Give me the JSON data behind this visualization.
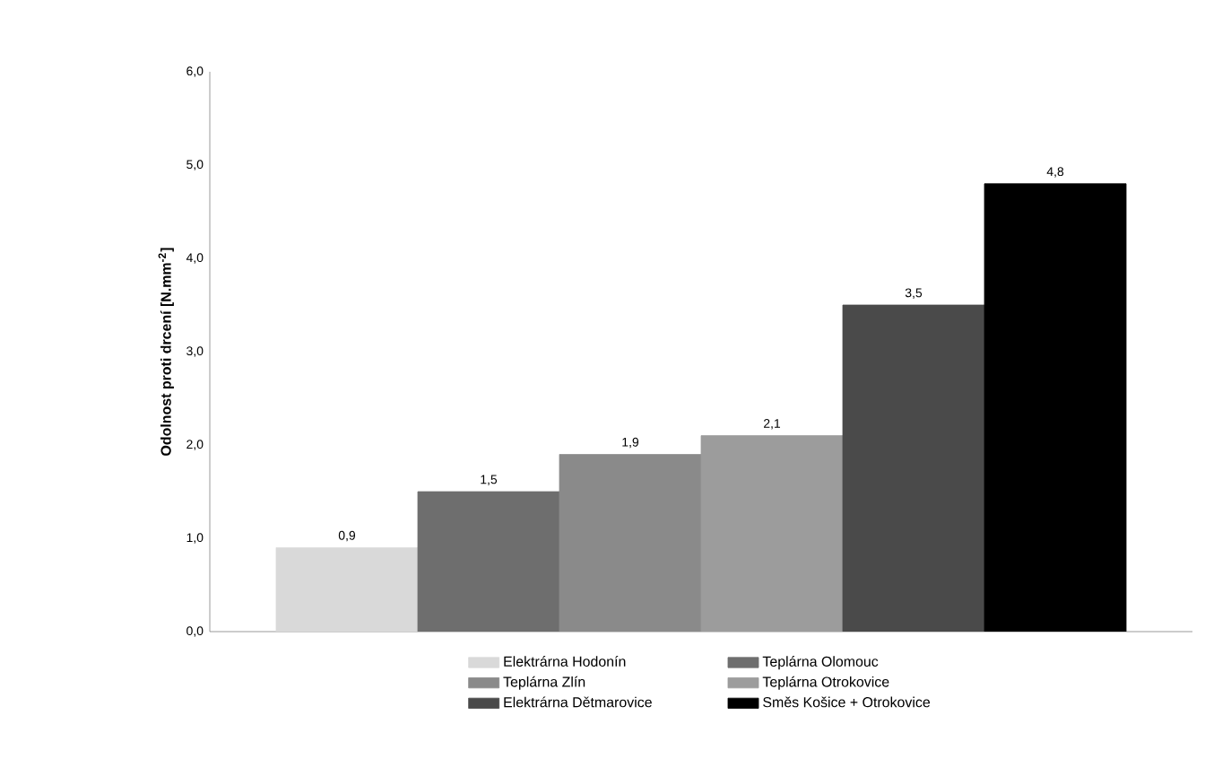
{
  "chart_data": {
    "type": "bar",
    "ylabel": "Odolnost proti drcení  [N.mm$^{-2}$]",
    "categories": [
      null
    ],
    "series": [
      {
        "name": "Elektrárna Hodonín",
        "color": "#d9d9d9",
        "values": [
          0.9
        ],
        "value_labels": [
          "0,9"
        ]
      },
      {
        "name": "Teplárna Olomouc",
        "color": "#6e6e6e",
        "values": [
          1.5
        ],
        "value_labels": [
          "1,5"
        ]
      },
      {
        "name": "Teplárna Zlín",
        "color": "#8a8a8a",
        "values": [
          1.9
        ],
        "value_labels": [
          "1,9"
        ]
      },
      {
        "name": "Teplárna Otrokovice",
        "color": "#9c9c9c",
        "values": [
          2.1
        ],
        "value_labels": [
          "2,1"
        ]
      },
      {
        "name": "Elektrárna Dětmarovice",
        "color": "#4a4a4a",
        "values": [
          3.5
        ],
        "value_labels": [
          "3,5"
        ]
      },
      {
        "name": "Směs Košice + Otrokovice",
        "color": "#000000",
        "values": [
          4.8
        ],
        "value_labels": [
          "4,8"
        ]
      }
    ],
    "ylim": [
      0,
      6
    ],
    "yticks": [
      {
        "value": 0,
        "label": "0,0"
      },
      {
        "value": 1,
        "label": "1,0"
      },
      {
        "value": 2,
        "label": "2,0"
      },
      {
        "value": 3,
        "label": "3,0"
      },
      {
        "value": 4,
        "label": "4,0"
      },
      {
        "value": 5,
        "label": "5,0"
      },
      {
        "value": 6,
        "label": "6,0"
      }
    ],
    "grid": false,
    "legend": "bottom"
  }
}
